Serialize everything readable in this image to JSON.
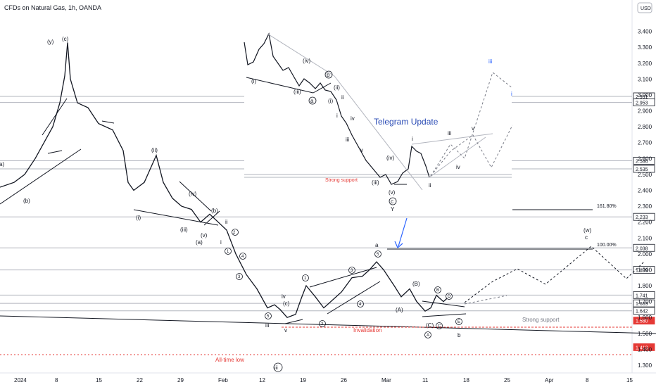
{
  "header": {
    "symbol_title": "CFDs on Natural Gas, 1h, OANDA",
    "currency_button": "USD"
  },
  "inset": {
    "title": "Telegram Update",
    "strong_support_label": "Strong support"
  },
  "annotations": {
    "invalidation": "Invalidation",
    "all_time_low": "All-time low",
    "strong_support": "Strong support",
    "fib_161": "161.80%",
    "fib_100": "100.00%"
  },
  "colors": {
    "candle": "#131722",
    "red": "#e53935",
    "blue_arrow": "#2962ff",
    "tele_blue": "#2a4bb5",
    "gray_level": "#b2b5be"
  },
  "chart_data": {
    "type": "candlestick",
    "title": "CFDs on Natural Gas, 1h, OANDA",
    "currency": "USD",
    "y_ticks": [
      "3.400",
      "3.300",
      "3.200",
      "3.100",
      "3.000",
      "2.900",
      "2.800",
      "2.700",
      "2.600",
      "2.500",
      "2.400",
      "2.300",
      "2.200",
      "2.100",
      "2.000",
      "1.900",
      "1.800",
      "1.700",
      "1.600",
      "1.500",
      "1.400",
      "1.300"
    ],
    "x_ticks": [
      "2024",
      "8",
      "15",
      "22",
      "29",
      "Feb",
      "12",
      "19",
      "26",
      "Mar",
      "11",
      "18",
      "25",
      "Apr",
      "8",
      "15"
    ],
    "ylim": [
      1.26,
      3.5
    ],
    "price_levels": [
      {
        "label": "2.991",
        "value": 2.991,
        "style": "boxed"
      },
      {
        "label": "2.953",
        "value": 2.953,
        "style": "boxed"
      },
      {
        "label": "2.586",
        "value": 2.586,
        "style": "boxed"
      },
      {
        "label": "2.535",
        "value": 2.535,
        "style": "boxed"
      },
      {
        "label": "2.233",
        "value": 2.233,
        "style": "boxed"
      },
      {
        "label": "2.038",
        "value": 2.038,
        "style": "boxed"
      },
      {
        "label": "1.899",
        "value": 1.899,
        "style": "boxed"
      },
      {
        "label": "1.741",
        "value": 1.741,
        "style": "boxed"
      },
      {
        "label": "1.689",
        "value": 1.689,
        "style": "boxed"
      },
      {
        "label": "1.642",
        "value": 1.642,
        "style": "boxed"
      },
      {
        "label": "1.580",
        "value": 1.58,
        "style": "red"
      },
      {
        "label": "1.413",
        "value": 1.413,
        "style": "red"
      }
    ],
    "price_path": [
      [
        0,
        2.42
      ],
      [
        20,
        2.45
      ],
      [
        35,
        2.5
      ],
      [
        50,
        2.6
      ],
      [
        65,
        2.72
      ],
      [
        75,
        2.8
      ],
      [
        85,
        2.95
      ],
      [
        92,
        3.12
      ],
      [
        96,
        3.33
      ],
      [
        100,
        3.1
      ],
      [
        110,
        2.95
      ],
      [
        125,
        2.92
      ],
      [
        140,
        2.82
      ],
      [
        160,
        2.78
      ],
      [
        175,
        2.65
      ],
      [
        182,
        2.45
      ],
      [
        190,
        2.4
      ],
      [
        205,
        2.45
      ],
      [
        215,
        2.55
      ],
      [
        222,
        2.62
      ],
      [
        232,
        2.45
      ],
      [
        245,
        2.35
      ],
      [
        258,
        2.3
      ],
      [
        272,
        2.28
      ],
      [
        285,
        2.2
      ],
      [
        298,
        2.25
      ],
      [
        310,
        2.2
      ],
      [
        322,
        2.15
      ],
      [
        335,
        2.0
      ],
      [
        350,
        1.87
      ],
      [
        365,
        1.78
      ],
      [
        380,
        1.66
      ],
      [
        390,
        1.68
      ],
      [
        398,
        1.65
      ],
      [
        408,
        1.6
      ],
      [
        420,
        1.62
      ],
      [
        428,
        1.72
      ],
      [
        435,
        1.8
      ],
      [
        448,
        1.73
      ],
      [
        460,
        1.66
      ],
      [
        470,
        1.7
      ],
      [
        485,
        1.76
      ],
      [
        500,
        1.85
      ],
      [
        515,
        1.86
      ],
      [
        525,
        1.9
      ],
      [
        535,
        1.95
      ],
      [
        545,
        1.9
      ],
      [
        560,
        1.8
      ],
      [
        570,
        1.73
      ],
      [
        582,
        1.78
      ],
      [
        592,
        1.7
      ],
      [
        604,
        1.64
      ],
      [
        612,
        1.66
      ],
      [
        620,
        1.74
      ],
      [
        630,
        1.7
      ],
      [
        635,
        1.72
      ]
    ],
    "wave_labels": [
      "(y)",
      "(c)",
      "(ii)",
      "(iv)",
      "(b)",
      "ii",
      "(i)",
      "(iii)",
      "(v)",
      "(a)",
      "i",
      "iii",
      "iv",
      "(c)",
      "v",
      "(b)",
      "(A)",
      "(C)",
      "b",
      "a",
      "(w)",
      "c",
      "a)",
      "(b)",
      "iii",
      "i",
      "iv",
      "v",
      "ii",
      "1",
      "2",
      "3",
      "4",
      "5",
      "A",
      "B",
      "C",
      "D",
      "E"
    ]
  }
}
